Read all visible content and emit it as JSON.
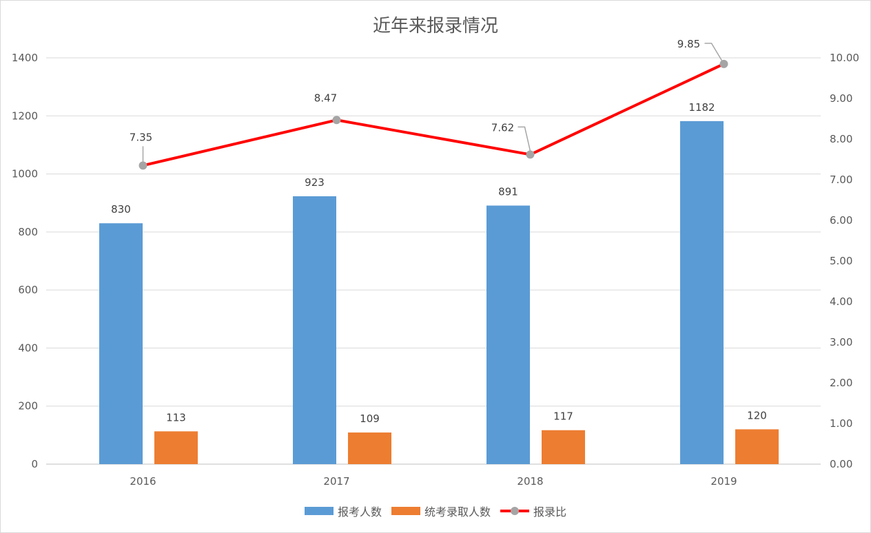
{
  "chart_data": {
    "type": "bar",
    "title": "近年来报录情况",
    "categories": [
      "2016",
      "2017",
      "2018",
      "2019"
    ],
    "series": [
      {
        "name": "报考人数",
        "kind": "bar",
        "axis": "left",
        "color": "#5b9bd5",
        "values": [
          830,
          923,
          891,
          1182
        ],
        "labels": [
          "830",
          "923",
          "891",
          "1182"
        ]
      },
      {
        "name": "统考录取人数",
        "kind": "bar",
        "axis": "left",
        "color": "#ed7d31",
        "values": [
          113,
          109,
          117,
          120
        ],
        "labels": [
          "113",
          "109",
          "117",
          "120"
        ]
      },
      {
        "name": "报录比",
        "kind": "line",
        "axis": "right",
        "color": "#ff0000",
        "marker_color": "#a5a5a5",
        "values": [
          7.35,
          8.47,
          7.62,
          9.85
        ],
        "labels": [
          "7.35",
          "8.47",
          "7.62",
          "9.85"
        ]
      }
    ],
    "y_left": {
      "ylim": [
        0,
        1400
      ],
      "ticks": [
        "0",
        "200",
        "400",
        "600",
        "800",
        "1000",
        "1200",
        "1400"
      ]
    },
    "y_right": {
      "ylim": [
        0,
        10
      ],
      "ticks": [
        "0.00",
        "1.00",
        "2.00",
        "3.00",
        "4.00",
        "5.00",
        "6.00",
        "7.00",
        "8.00",
        "9.00",
        "10.00"
      ]
    },
    "grid": true,
    "legend_position": "bottom"
  }
}
